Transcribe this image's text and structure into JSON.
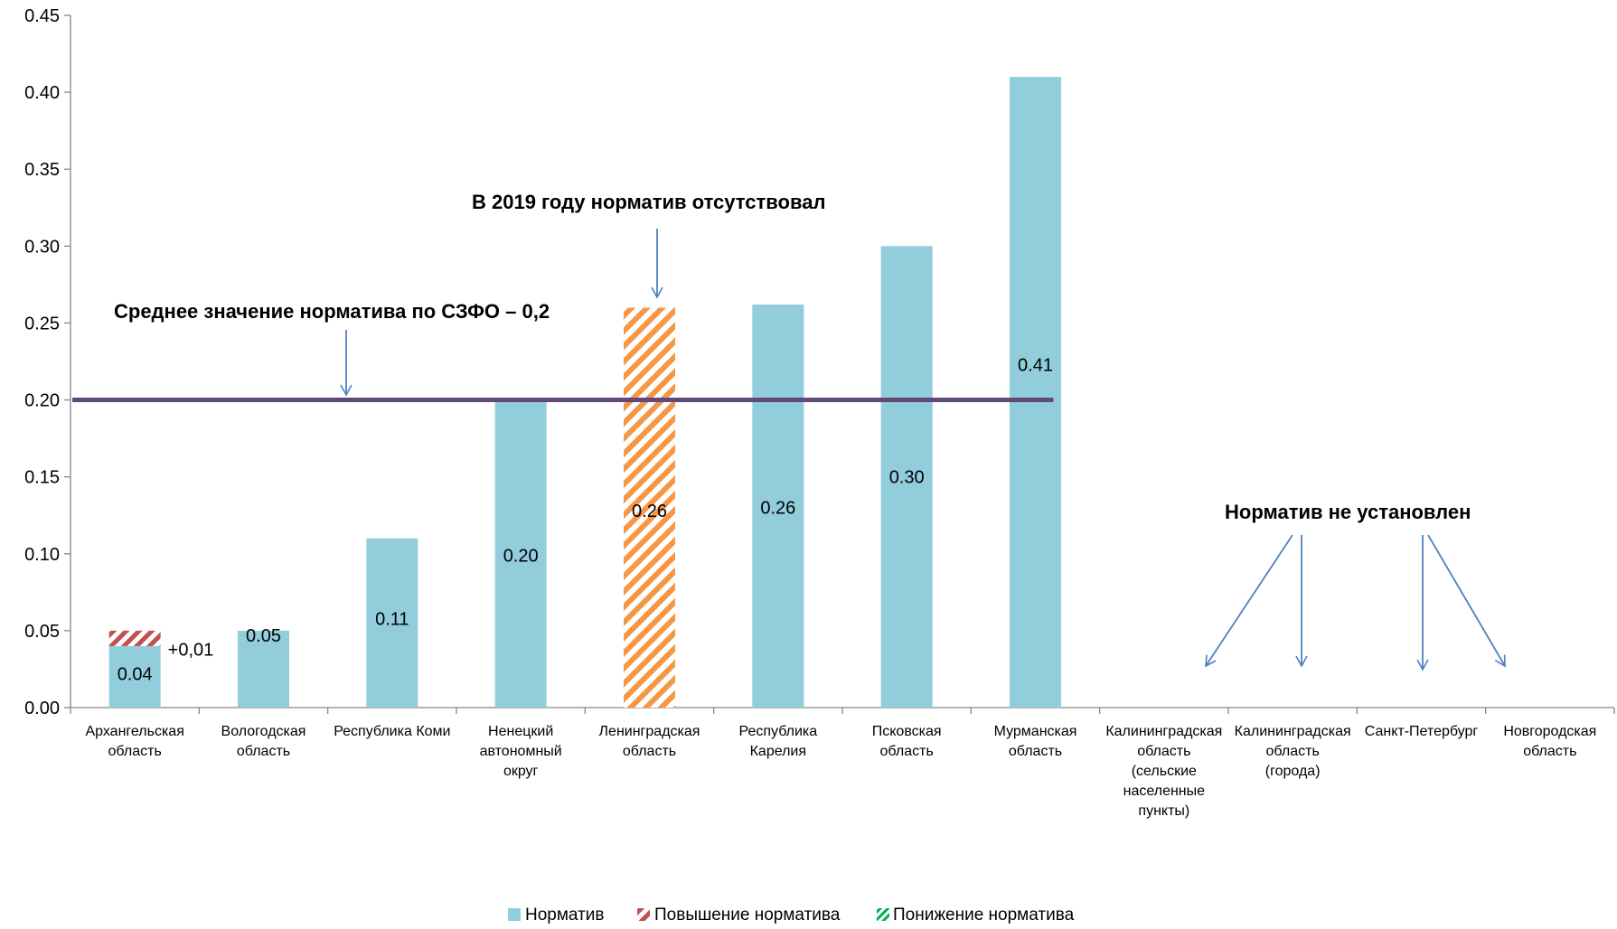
{
  "chart_data": {
    "type": "bar",
    "title": "",
    "xlabel": "",
    "ylabel": "",
    "ylim": [
      0,
      0.45
    ],
    "y_ticks": [
      "0.00",
      "0.05",
      "0.10",
      "0.15",
      "0.20",
      "0.25",
      "0.30",
      "0.35",
      "0.40",
      "0.45"
    ],
    "grid": false,
    "categories": [
      [
        "Архангельская",
        "область"
      ],
      [
        "Вологодская",
        "область"
      ],
      [
        "Республика Коми"
      ],
      [
        "Ненецкий",
        "автономный",
        "округ"
      ],
      [
        "Ленинградская",
        "область"
      ],
      [
        "Республика",
        "Карелия"
      ],
      [
        "Псковская",
        "область"
      ],
      [
        "Мурманская",
        "область"
      ],
      [
        "Калининградская",
        "область",
        "(сельские",
        "населенные",
        "пункты)"
      ],
      [
        "Калининградская",
        "область",
        "(города)"
      ],
      [
        "Санкт-Петербург"
      ],
      [
        "Новгородская",
        "область"
      ]
    ],
    "series": [
      {
        "name": "Норматив",
        "color": "#92CDDC",
        "values": [
          0.04,
          0.05,
          0.11,
          0.2,
          null,
          0.262,
          0.3,
          0.41,
          null,
          null,
          null,
          null
        ],
        "labels": [
          "0.04",
          "0.05",
          "0.11",
          "0.20",
          "",
          "0.26",
          "0.30",
          "0.41",
          "",
          "",
          "",
          ""
        ]
      },
      {
        "name": "Повышение норматива",
        "color": "#C0504D",
        "values": [
          0.01,
          null,
          null,
          null,
          null,
          null,
          null,
          null,
          null,
          null,
          null,
          null
        ],
        "labels": [
          "+0,01",
          "",
          "",
          "",
          "",
          "",
          "",
          "",
          "",
          "",
          "",
          ""
        ]
      },
      {
        "name": "Понижение норматива",
        "color": "#00B050",
        "values": [
          null,
          null,
          null,
          null,
          null,
          null,
          null,
          null,
          null,
          null,
          null,
          null
        ]
      }
    ],
    "special_bar": {
      "category_index": 4,
      "value": 0.26,
      "label": "0.26",
      "color": "#F79646"
    },
    "reference_line": {
      "value": 0.2,
      "color": "#604A7B"
    },
    "annotations": {
      "average": "Среднее значение норматива по СЗФО – 0,2",
      "absent_2019": "В 2019 году норматив отсутствовал",
      "not_set": "Норматив не установлен"
    },
    "arrow_color": "#4F81BD",
    "legend_position": "bottom"
  }
}
